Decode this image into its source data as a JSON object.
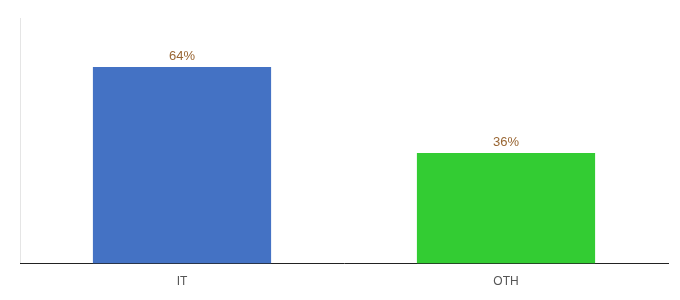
{
  "chart_data": {
    "type": "bar",
    "categories": [
      "IT",
      "OTH"
    ],
    "values": [
      64,
      36
    ],
    "value_labels": [
      "64%",
      "36%"
    ],
    "data_labels": true,
    "colors": [
      "#4472C4",
      "#33CC33"
    ],
    "ylim": [
      0,
      80
    ],
    "grid": false,
    "tick_labels": "x"
  }
}
